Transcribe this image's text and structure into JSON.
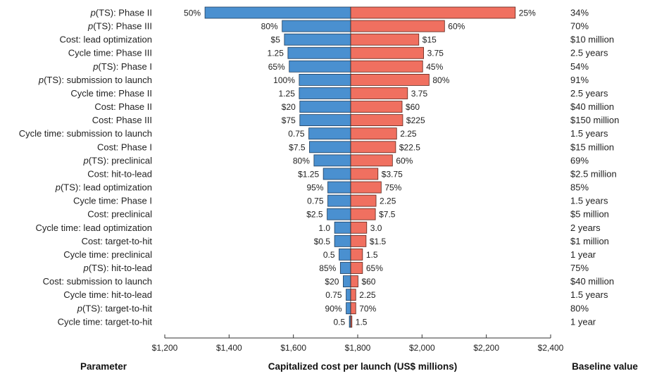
{
  "chart_data": {
    "type": "bar",
    "orientation": "horizontal",
    "subtype": "tornado",
    "center": 1778,
    "xlim": [
      1200,
      2400
    ],
    "xticks": [
      "$1,200",
      "$1,400",
      "$1,600",
      "$1,800",
      "$2,000",
      "$2,200",
      "$2,400"
    ],
    "xtick_values": [
      1200,
      1400,
      1600,
      1800,
      2000,
      2200,
      2400
    ],
    "xlabel": "Capitalized cost per launch (US$ millions)",
    "left_header": "Parameter",
    "right_header": "Baseline value",
    "colors": {
      "low": "#4a90d0",
      "high": "#f07060"
    },
    "rows": [
      {
        "prefix": "p",
        "label": "(TS): Phase II",
        "low_label": "50%",
        "high_label": "25%",
        "baseline": "34%",
        "low_value": 1325,
        "high_value": 2290
      },
      {
        "prefix": "p",
        "label": "(TS): Phase III",
        "low_label": "80%",
        "high_label": "60%",
        "baseline": "70%",
        "low_value": 1565,
        "high_value": 2070
      },
      {
        "prefix": "",
        "label": "Cost: lead optimization",
        "low_label": "$5",
        "high_label": "$15",
        "baseline": "$10 million",
        "low_value": 1572,
        "high_value": 1990
      },
      {
        "prefix": "",
        "label": "Cycle time: Phase III",
        "low_label": "1.25",
        "high_label": "3.75",
        "baseline": "2.5 years",
        "low_value": 1583,
        "high_value": 2005
      },
      {
        "prefix": "p",
        "label": "(TS): Phase I",
        "low_label": "65%",
        "high_label": "45%",
        "baseline": "54%",
        "low_value": 1587,
        "high_value": 2002
      },
      {
        "prefix": "p",
        "label": "(TS): submission to launch",
        "low_label": "100%",
        "high_label": "80%",
        "baseline": "91%",
        "low_value": 1618,
        "high_value": 2022
      },
      {
        "prefix": "",
        "label": "Cycle time: Phase II",
        "low_label": "1.25",
        "high_label": "3.75",
        "baseline": "2.5 years",
        "low_value": 1618,
        "high_value": 1955
      },
      {
        "prefix": "",
        "label": "Cost: Phase II",
        "low_label": "$20",
        "high_label": "$60",
        "baseline": "$40 million",
        "low_value": 1620,
        "high_value": 1938
      },
      {
        "prefix": "",
        "label": "Cost: Phase III",
        "low_label": "$75",
        "high_label": "$225",
        "baseline": "$150 million",
        "low_value": 1620,
        "high_value": 1940
      },
      {
        "prefix": "",
        "label": "Cycle time: submission to launch",
        "low_label": "0.75",
        "high_label": "2.25",
        "baseline": "1.5 years",
        "low_value": 1648,
        "high_value": 1921
      },
      {
        "prefix": "",
        "label": "Cost: Phase I",
        "low_label": "$7.5",
        "high_label": "$22.5",
        "baseline": "$15 million",
        "low_value": 1650,
        "high_value": 1918
      },
      {
        "prefix": "p",
        "label": "(TS): preclinical",
        "low_label": "80%",
        "high_label": "60%",
        "baseline": "69%",
        "low_value": 1664,
        "high_value": 1908
      },
      {
        "prefix": "",
        "label": "Cost: hit-to-lead",
        "low_label": "$1.25",
        "high_label": "$3.75",
        "baseline": "$2.5 million",
        "low_value": 1693,
        "high_value": 1863
      },
      {
        "prefix": "p",
        "label": "(TS): lead optimization",
        "low_label": "95%",
        "high_label": "75%",
        "baseline": "85%",
        "low_value": 1707,
        "high_value": 1873
      },
      {
        "prefix": "",
        "label": "Cycle time: Phase I",
        "low_label": "0.75",
        "high_label": "2.25",
        "baseline": "1.5 years",
        "low_value": 1707,
        "high_value": 1857
      },
      {
        "prefix": "",
        "label": "Cost: preclinical",
        "low_label": "$2.5",
        "high_label": "$7.5",
        "baseline": "$5 million",
        "low_value": 1705,
        "high_value": 1855
      },
      {
        "prefix": "",
        "label": "Cycle time: lead optimization",
        "low_label": "1.0",
        "high_label": "3.0",
        "baseline": "2 years",
        "low_value": 1728,
        "high_value": 1828
      },
      {
        "prefix": "",
        "label": "Cost: target-to-hit",
        "low_label": "$0.5",
        "high_label": "$1.5",
        "baseline": "$1 million",
        "low_value": 1728,
        "high_value": 1826
      },
      {
        "prefix": "",
        "label": "Cycle time: preclinical",
        "low_label": "0.5",
        "high_label": "1.5",
        "baseline": "1 year",
        "low_value": 1742,
        "high_value": 1815
      },
      {
        "prefix": "p",
        "label": "(TS): hit-to-lead",
        "low_label": "85%",
        "high_label": "65%",
        "baseline": "75%",
        "low_value": 1746,
        "high_value": 1815
      },
      {
        "prefix": "",
        "label": "Cost: submission to launch",
        "low_label": "$20",
        "high_label": "$60",
        "baseline": "$40 million",
        "low_value": 1755,
        "high_value": 1801
      },
      {
        "prefix": "",
        "label": "Cycle time: hit-to-lead",
        "low_label": "0.75",
        "high_label": "2.25",
        "baseline": "1.5 years",
        "low_value": 1764,
        "high_value": 1794
      },
      {
        "prefix": "p",
        "label": "(TS): target-to-hit",
        "low_label": "90%",
        "high_label": "70%",
        "baseline": "80%",
        "low_value": 1764,
        "high_value": 1794
      },
      {
        "prefix": "",
        "label": "Cycle time: target-to-hit",
        "low_label": "0.5",
        "high_label": "1.5",
        "baseline": "1 year",
        "low_value": 1774,
        "high_value": 1782
      }
    ]
  }
}
